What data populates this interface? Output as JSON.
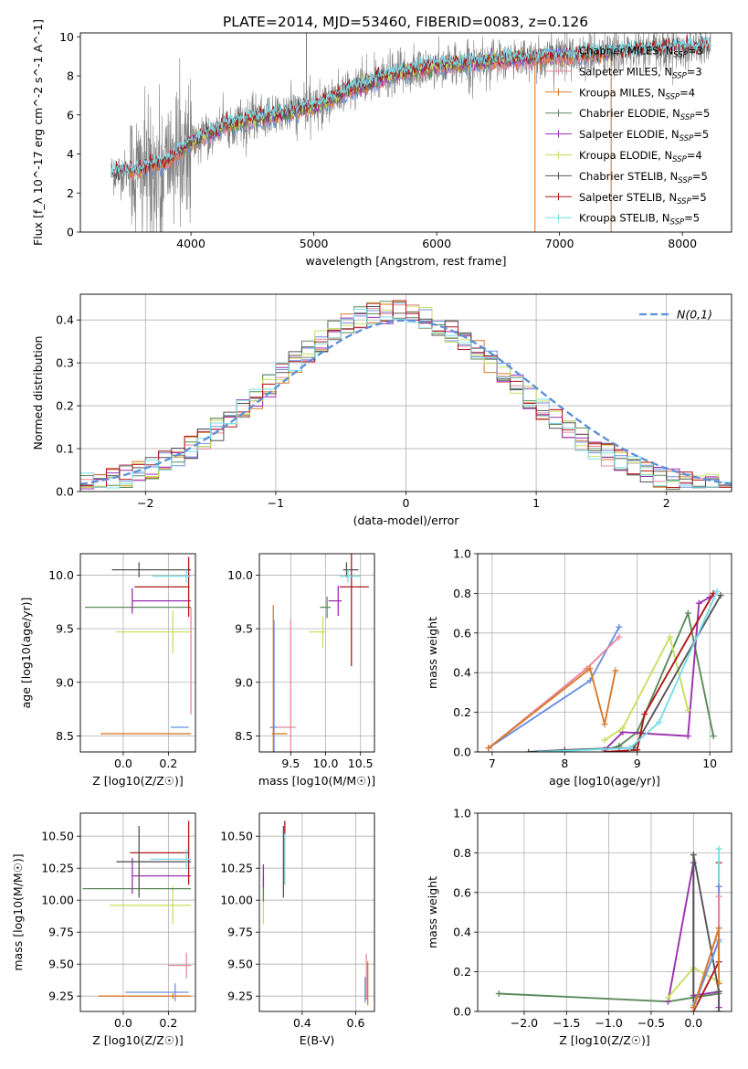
{
  "figure_title": "PLATE=2014, MJD=53460, FIBERID=0083, z=0.126",
  "colors": {
    "chabrier_miles": "#6b8fe0",
    "salpeter_miles": "#e8879a",
    "kroupa_miles": "#d97a2b",
    "chabrier_elodie": "#5b8a5b",
    "salpeter_elodie": "#9b30b0",
    "kroupa_elodie": "#c8e060",
    "chabrier_stelib": "#555555",
    "salpeter_stelib": "#b01818",
    "kroupa_stelib": "#78dde8",
    "data": "#808080",
    "gauss": "#5b8fd6",
    "grid": "#b0b0b0"
  },
  "legend_spectrum": [
    {
      "name": "Chabrier MILES",
      "n": "3",
      "color": "#6b8fe0"
    },
    {
      "name": "Salpeter MILES",
      "n": "3",
      "color": "#e8879a"
    },
    {
      "name": "Kroupa MILES",
      "n": "4",
      "color": "#d97a2b"
    },
    {
      "name": "Chabrier ELODIE",
      "n": "5",
      "color": "#5b8a5b"
    },
    {
      "name": "Salpeter ELODIE",
      "n": "5",
      "color": "#9b30b0"
    },
    {
      "name": "Kroupa ELODIE",
      "n": "4",
      "color": "#c8e060"
    },
    {
      "name": "Chabrier STELIB",
      "n": "5",
      "color": "#555555"
    },
    {
      "name": "Salpeter STELIB",
      "n": "5",
      "color": "#b01818"
    },
    {
      "name": "Kroupa STELIB",
      "n": "5",
      "color": "#78dde8"
    }
  ],
  "legend_gauss": "N(0,1)",
  "chart_data": [
    {
      "id": "spectrum",
      "type": "line",
      "xlabel": "wavelength [Angstrom, rest frame]",
      "ylabel": "Flux [f_λ 10^-17 erg cm^-2 s^-1 A^-1]",
      "xlim": [
        3100,
        8400
      ],
      "ylim": [
        0,
        10.2
      ],
      "xticks": [
        4000,
        5000,
        6000,
        7000,
        8000
      ],
      "yticks": [
        0,
        2,
        4,
        6,
        8,
        10
      ],
      "continuum": {
        "x": [
          3350,
          3600,
          3800,
          4000,
          4300,
          4700,
          5000,
          5300,
          5600,
          6000,
          6500,
          7000,
          7500,
          8000,
          8200
        ],
        "y": [
          3.0,
          3.2,
          3.6,
          4.6,
          5.5,
          6.0,
          6.4,
          7.3,
          8.0,
          8.5,
          8.8,
          9.0,
          9.2,
          9.4,
          9.5
        ]
      },
      "data_range": [
        3350,
        8230
      ]
    },
    {
      "id": "residuals",
      "type": "histogram",
      "xlabel": "(data-model)/error",
      "ylabel": "Normed distribution",
      "xlim": [
        -2.5,
        2.5
      ],
      "ylim": [
        0,
        0.46
      ],
      "xticks": [
        -2,
        -1,
        0,
        1,
        2
      ],
      "yticks": [
        0.0,
        0.1,
        0.2,
        0.3,
        0.4
      ],
      "bin_width": 0.1,
      "gaussian": {
        "mu": 0,
        "sigma": 1
      }
    },
    {
      "id": "age_vs_Z",
      "type": "errorbar",
      "xlabel": "Z [log10(Z/Z☉)]",
      "ylabel": "age  [log10(age/yr)]",
      "xlim": [
        -0.19,
        0.32
      ],
      "ylim": [
        8.35,
        10.2
      ],
      "xticks": [
        0.0,
        0.2
      ],
      "yticks": [
        8.5,
        9.0,
        9.5,
        10.0
      ],
      "points": [
        {
          "c": "chabrier_miles",
          "x": 0.23,
          "xe": [
            0.02,
            0.06
          ],
          "y": 8.58,
          "ye": 0.0
        },
        {
          "c": "kroupa_miles",
          "x": 0.22,
          "xe": [
            0.32,
            0.08
          ],
          "y": 8.52,
          "ye": 0.0
        },
        {
          "c": "chabrier_elodie",
          "x": 0.1,
          "xe": [
            0.27,
            0.2
          ],
          "y": 9.7,
          "ye": 0.0
        },
        {
          "c": "salpeter_elodie",
          "x": 0.04,
          "xe": [
            0.0,
            0.26
          ],
          "y": 9.76,
          "ye": 0.12
        },
        {
          "c": "kroupa_elodie",
          "x": 0.22,
          "xe": [
            0.25,
            0.08
          ],
          "y": 9.47,
          "ye": 0.2
        },
        {
          "c": "chabrier_stelib",
          "x": 0.07,
          "xe": [
            0.12,
            0.23
          ],
          "y": 10.05,
          "ye": 0.07
        },
        {
          "c": "salpeter_stelib",
          "x": 0.29,
          "xe": [
            0.24,
            0.0
          ],
          "y": 9.89,
          "ye": 0.28
        },
        {
          "c": "kroupa_stelib",
          "x": 0.28,
          "xe": [
            0.15,
            0.02
          ],
          "y": 9.99,
          "ye": 0.06
        },
        {
          "c": "salpeter_miles",
          "x": 0.3,
          "xe": [
            0.0,
            0.0
          ],
          "y": 9.2,
          "ye": 0.5
        }
      ]
    },
    {
      "id": "age_vs_mass",
      "type": "errorbar",
      "xlabel": "mass [log10(M/M☉)]",
      "ylabel": "",
      "xlim": [
        9.05,
        10.7
      ],
      "ylim": [
        8.35,
        10.2
      ],
      "xticks": [
        9.5,
        10.0,
        10.5
      ],
      "yticks": [
        8.5,
        9.0,
        9.5,
        10.0
      ],
      "points": [
        {
          "c": "chabrier_miles",
          "x": 9.26,
          "xe": [
            0.06,
            0.05
          ],
          "y": 8.58,
          "ye": 1.0
        },
        {
          "c": "kroupa_miles",
          "x": 9.25,
          "xe": [
            0.02,
            0.2
          ],
          "y": 8.52,
          "ye": 1.2
        },
        {
          "c": "salpeter_miles",
          "x": 9.5,
          "xe": [
            0.2,
            0.07
          ],
          "y": 8.58,
          "ye": 1.0
        },
        {
          "c": "kroupa_elodie",
          "x": 9.96,
          "xe": [
            0.2,
            0.05
          ],
          "y": 9.47,
          "ye": 0.15
        },
        {
          "c": "chabrier_elodie",
          "x": 10.02,
          "xe": [
            0.1,
            0.05
          ],
          "y": 9.7,
          "ye": 0.1
        },
        {
          "c": "salpeter_elodie",
          "x": 10.18,
          "xe": [
            0.14,
            0.05
          ],
          "y": 9.76,
          "ye": 0.14
        },
        {
          "c": "salpeter_stelib",
          "x": 10.37,
          "xe": [
            0.17,
            0.25
          ],
          "y": 9.89,
          "ye": 0.74
        },
        {
          "c": "chabrier_stelib",
          "x": 10.3,
          "xe": [
            0.05,
            0.17
          ],
          "y": 10.05,
          "ye": 0.07
        },
        {
          "c": "kroupa_stelib",
          "x": 10.32,
          "xe": [
            0.12,
            0.18
          ],
          "y": 9.99,
          "ye": 0.06
        }
      ]
    },
    {
      "id": "mass_weight_vs_age",
      "type": "line",
      "xlabel": "age  [log10(age/yr)]",
      "ylabel": "mass weight",
      "xlim": [
        6.8,
        10.3
      ],
      "ylim": [
        0,
        1.0
      ],
      "xticks": [
        7,
        8,
        9,
        10
      ],
      "yticks": [
        0.0,
        0.2,
        0.4,
        0.6,
        0.8,
        1.0
      ],
      "series": [
        {
          "c": "chabrier_miles",
          "x": [
            6.95,
            8.35,
            8.75
          ],
          "y": [
            0.02,
            0.36,
            0.63
          ]
        },
        {
          "c": "salpeter_miles",
          "x": [
            6.95,
            8.3,
            8.75
          ],
          "y": [
            0.02,
            0.42,
            0.58
          ]
        },
        {
          "c": "kroupa_miles",
          "x": [
            6.95,
            8.35,
            8.55,
            8.7
          ],
          "y": [
            0.02,
            0.42,
            0.14,
            0.41
          ]
        },
        {
          "c": "chabrier_elodie",
          "x": [
            8.55,
            8.75,
            9.0,
            9.7,
            10.05
          ],
          "y": [
            0.01,
            0.03,
            0.1,
            0.7,
            0.08
          ]
        },
        {
          "c": "salpeter_elodie",
          "x": [
            8.55,
            8.8,
            9.7,
            9.85,
            10.0
          ],
          "y": [
            0.01,
            0.1,
            0.08,
            0.75,
            0.78
          ]
        },
        {
          "c": "kroupa_elodie",
          "x": [
            8.55,
            8.8,
            9.45,
            9.7
          ],
          "y": [
            0.06,
            0.12,
            0.58,
            0.21
          ]
        },
        {
          "c": "chabrier_stelib",
          "x": [
            7.5,
            8.0,
            8.75,
            8.95,
            10.15
          ],
          "y": [
            0.0,
            0.01,
            0.02,
            0.02,
            0.79
          ]
        },
        {
          "c": "salpeter_stelib",
          "x": [
            8.55,
            9.0,
            9.1,
            10.05
          ],
          "y": [
            0.0,
            0.01,
            0.19,
            0.8
          ]
        },
        {
          "c": "kroupa_stelib",
          "x": [
            7.65,
            8.9,
            9.3,
            10.1
          ],
          "y": [
            0.0,
            0.02,
            0.15,
            0.81
          ]
        }
      ]
    },
    {
      "id": "mass_vs_Z",
      "type": "errorbar",
      "xlabel": "Z [log10(Z/Z☉)]",
      "ylabel": "mass [log10(M/M☉)]",
      "xlim": [
        -0.19,
        0.32
      ],
      "ylim": [
        9.13,
        10.68
      ],
      "xticks": [
        0.0,
        0.2
      ],
      "yticks": [
        9.25,
        9.5,
        9.75,
        10.0,
        10.25,
        10.5
      ],
      "points": [
        {
          "c": "chabrier_miles",
          "x": 0.23,
          "xe": [
            0.22,
            0.06
          ],
          "y": 9.28,
          "ye": 0.07
        },
        {
          "c": "kroupa_miles",
          "x": 0.22,
          "xe": [
            0.33,
            0.08
          ],
          "y": 9.25,
          "ye": 0.02
        },
        {
          "c": "salpeter_miles",
          "x": 0.28,
          "xe": [
            0.08,
            0.02
          ],
          "y": 9.49,
          "ye": 0.1
        },
        {
          "c": "kroupa_elodie",
          "x": 0.22,
          "xe": [
            0.28,
            0.08
          ],
          "y": 9.96,
          "ye": 0.15
        },
        {
          "c": "chabrier_elodie",
          "x": 0.1,
          "xe": [
            0.28,
            0.2
          ],
          "y": 10.09,
          "ye": 0.0
        },
        {
          "c": "salpeter_elodie",
          "x": 0.04,
          "xe": [
            0.0,
            0.26
          ],
          "y": 10.19,
          "ye": 0.14
        },
        {
          "c": "salpeter_stelib",
          "x": 0.29,
          "xe": [
            0.26,
            0.0
          ],
          "y": 10.37,
          "ye": 0.25
        },
        {
          "c": "chabrier_stelib",
          "x": 0.07,
          "xe": [
            0.1,
            0.23
          ],
          "y": 10.3,
          "ye": 0.28
        },
        {
          "c": "kroupa_stelib",
          "x": 0.28,
          "xe": [
            0.16,
            0.02
          ],
          "y": 10.32,
          "ye": 0.08
        }
      ]
    },
    {
      "id": "mass_vs_ebv",
      "type": "errorbar",
      "xlabel": "E(B-V)",
      "ylabel": "",
      "xlim": [
        0.24,
        0.67
      ],
      "ylim": [
        9.13,
        10.68
      ],
      "xticks": [
        0.4,
        0.6
      ],
      "yticks": [
        9.25,
        9.5,
        9.75,
        10.0,
        10.25,
        10.5
      ],
      "points": [
        {
          "c": "chabrier_miles",
          "x": 0.635,
          "xe": [
            0.0,
            0.0
          ],
          "y": 9.3,
          "ye": 0.1
        },
        {
          "c": "kroupa_miles",
          "x": 0.645,
          "xe": [
            0.0,
            0.0
          ],
          "y": 9.35,
          "ye": 0.17
        },
        {
          "c": "salpeter_miles",
          "x": 0.64,
          "xe": [
            0.0,
            0.0
          ],
          "y": 9.4,
          "ye": 0.18
        },
        {
          "c": "kroupa_elodie",
          "x": 0.255,
          "xe": [
            0.0,
            0.0
          ],
          "y": 9.96,
          "ye": 0.15
        },
        {
          "c": "chabrier_elodie",
          "x": 0.255,
          "xe": [
            0.0,
            0.0
          ],
          "y": 10.09,
          "ye": 0.1
        },
        {
          "c": "salpeter_elodie",
          "x": 0.255,
          "xe": [
            0.0,
            0.0
          ],
          "y": 10.19,
          "ye": 0.09
        },
        {
          "c": "salpeter_stelib",
          "x": 0.335,
          "xe": [
            0.0,
            0.0
          ],
          "y": 10.37,
          "ye": 0.25
        },
        {
          "c": "chabrier_stelib",
          "x": 0.33,
          "xe": [
            0.0,
            0.0
          ],
          "y": 10.3,
          "ye": 0.28
        },
        {
          "c": "kroupa_stelib",
          "x": 0.335,
          "xe": [
            0.0,
            0.0
          ],
          "y": 10.32,
          "ye": 0.2
        }
      ]
    },
    {
      "id": "mass_weight_vs_Z",
      "type": "line",
      "xlabel": "Z [log10(Z/Z☉)]",
      "ylabel": "mass weight",
      "xlim": [
        -2.55,
        0.45
      ],
      "ylim": [
        0,
        1.0
      ],
      "xticks": [
        -2.0,
        -1.5,
        -1.0,
        -0.5,
        0.0
      ],
      "yticks": [
        0.0,
        0.2,
        0.4,
        0.6,
        0.8,
        1.0
      ],
      "series": [
        {
          "c": "chabrier_elodie",
          "x": [
            -2.3,
            -0.3,
            0.0,
            0.3
          ],
          "y": [
            0.09,
            0.05,
            0.07,
            0.09
          ]
        },
        {
          "c": "salpeter_elodie",
          "x": [
            -0.3,
            0.0,
            0.0,
            0.3,
            0.3
          ],
          "y": [
            0.05,
            0.75,
            0.08,
            0.1,
            0.02
          ]
        },
        {
          "c": "kroupa_elodie",
          "x": [
            -0.3,
            0.0,
            0.3
          ],
          "y": [
            0.07,
            0.22,
            0.15
          ]
        },
        {
          "c": "chabrier_stelib",
          "x": [
            0.0,
            0.0,
            0.3,
            0.3
          ],
          "y": [
            0.02,
            0.79,
            0.1,
            0.0
          ]
        },
        {
          "c": "salpeter_stelib",
          "x": [
            0.0,
            0.3,
            0.3
          ],
          "y": [
            0.0,
            0.25,
            0.75
          ]
        },
        {
          "c": "kroupa_stelib",
          "x": [
            0.0,
            0.3,
            0.3
          ],
          "y": [
            0.03,
            0.35,
            0.82
          ]
        },
        {
          "c": "chabrier_miles",
          "x": [
            0.0,
            0.3,
            0.3
          ],
          "y": [
            0.02,
            0.36,
            0.63
          ]
        },
        {
          "c": "salpeter_miles",
          "x": [
            0.0,
            0.3,
            0.3
          ],
          "y": [
            0.02,
            0.42,
            0.58
          ]
        },
        {
          "c": "kroupa_miles",
          "x": [
            0.0,
            0.3,
            0.3
          ],
          "y": [
            0.02,
            0.42,
            0.14
          ]
        }
      ]
    }
  ]
}
